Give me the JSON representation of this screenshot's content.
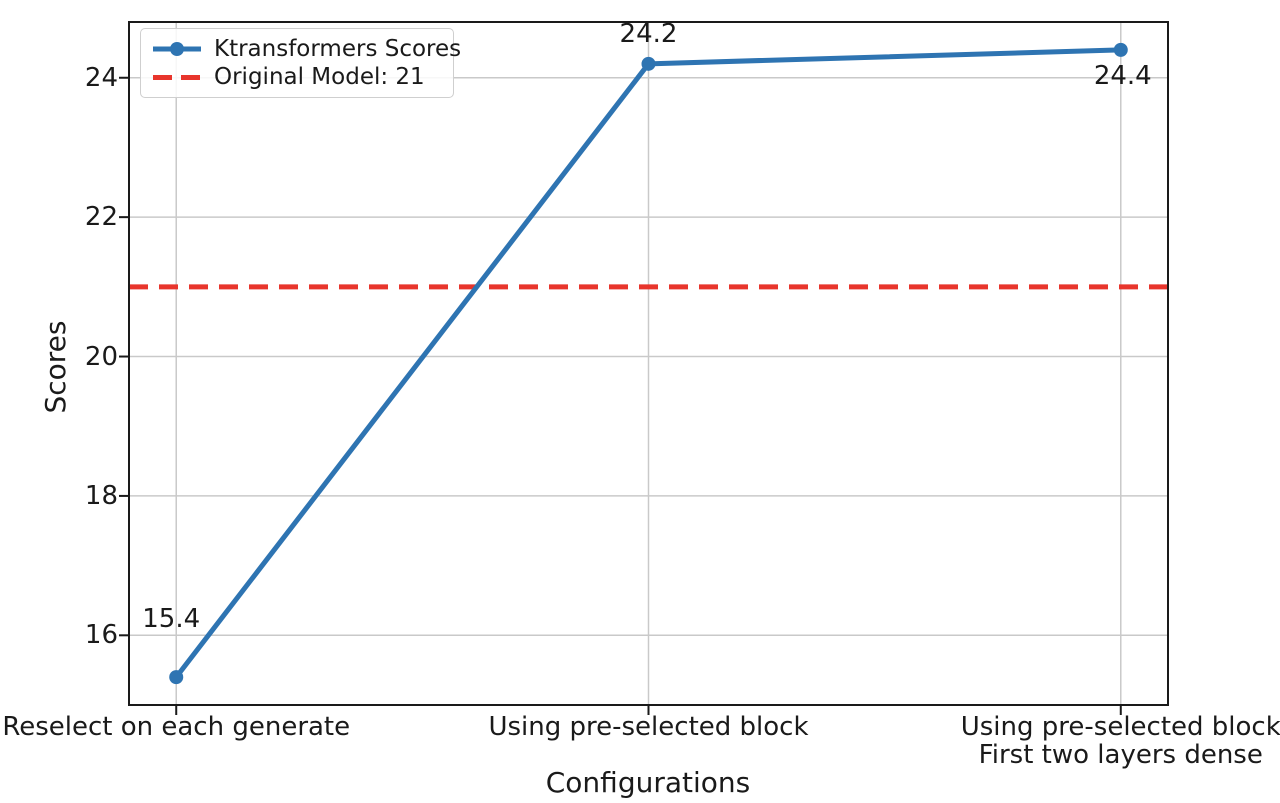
{
  "chart_data": {
    "type": "line",
    "title": "",
    "xlabel": "Configurations",
    "ylabel": "Scores",
    "categories": [
      "Reselect on each generate",
      "Using pre-selected block",
      "Using pre-selected block\nFirst two layers dense"
    ],
    "series": [
      {
        "name": "Ktransformers Scores",
        "values": [
          15.4,
          24.2,
          24.4
        ],
        "color": "#2e74b2",
        "marker": "circle",
        "line_style": "solid"
      }
    ],
    "reference_line": {
      "label": "Original Model: 21",
      "value": 21,
      "color": "#e8352c",
      "line_style": "dashed"
    },
    "data_labels": [
      "15.4",
      "24.2",
      "24.4"
    ],
    "yticks": [
      16,
      18,
      20,
      22,
      24
    ],
    "ylim": [
      15.0,
      24.8
    ],
    "grid": true,
    "grid_color": "#c9c9c9",
    "axis_color": "#1a1a1a",
    "text_color": "#1a1a1a",
    "legend_position": "upper-left"
  }
}
